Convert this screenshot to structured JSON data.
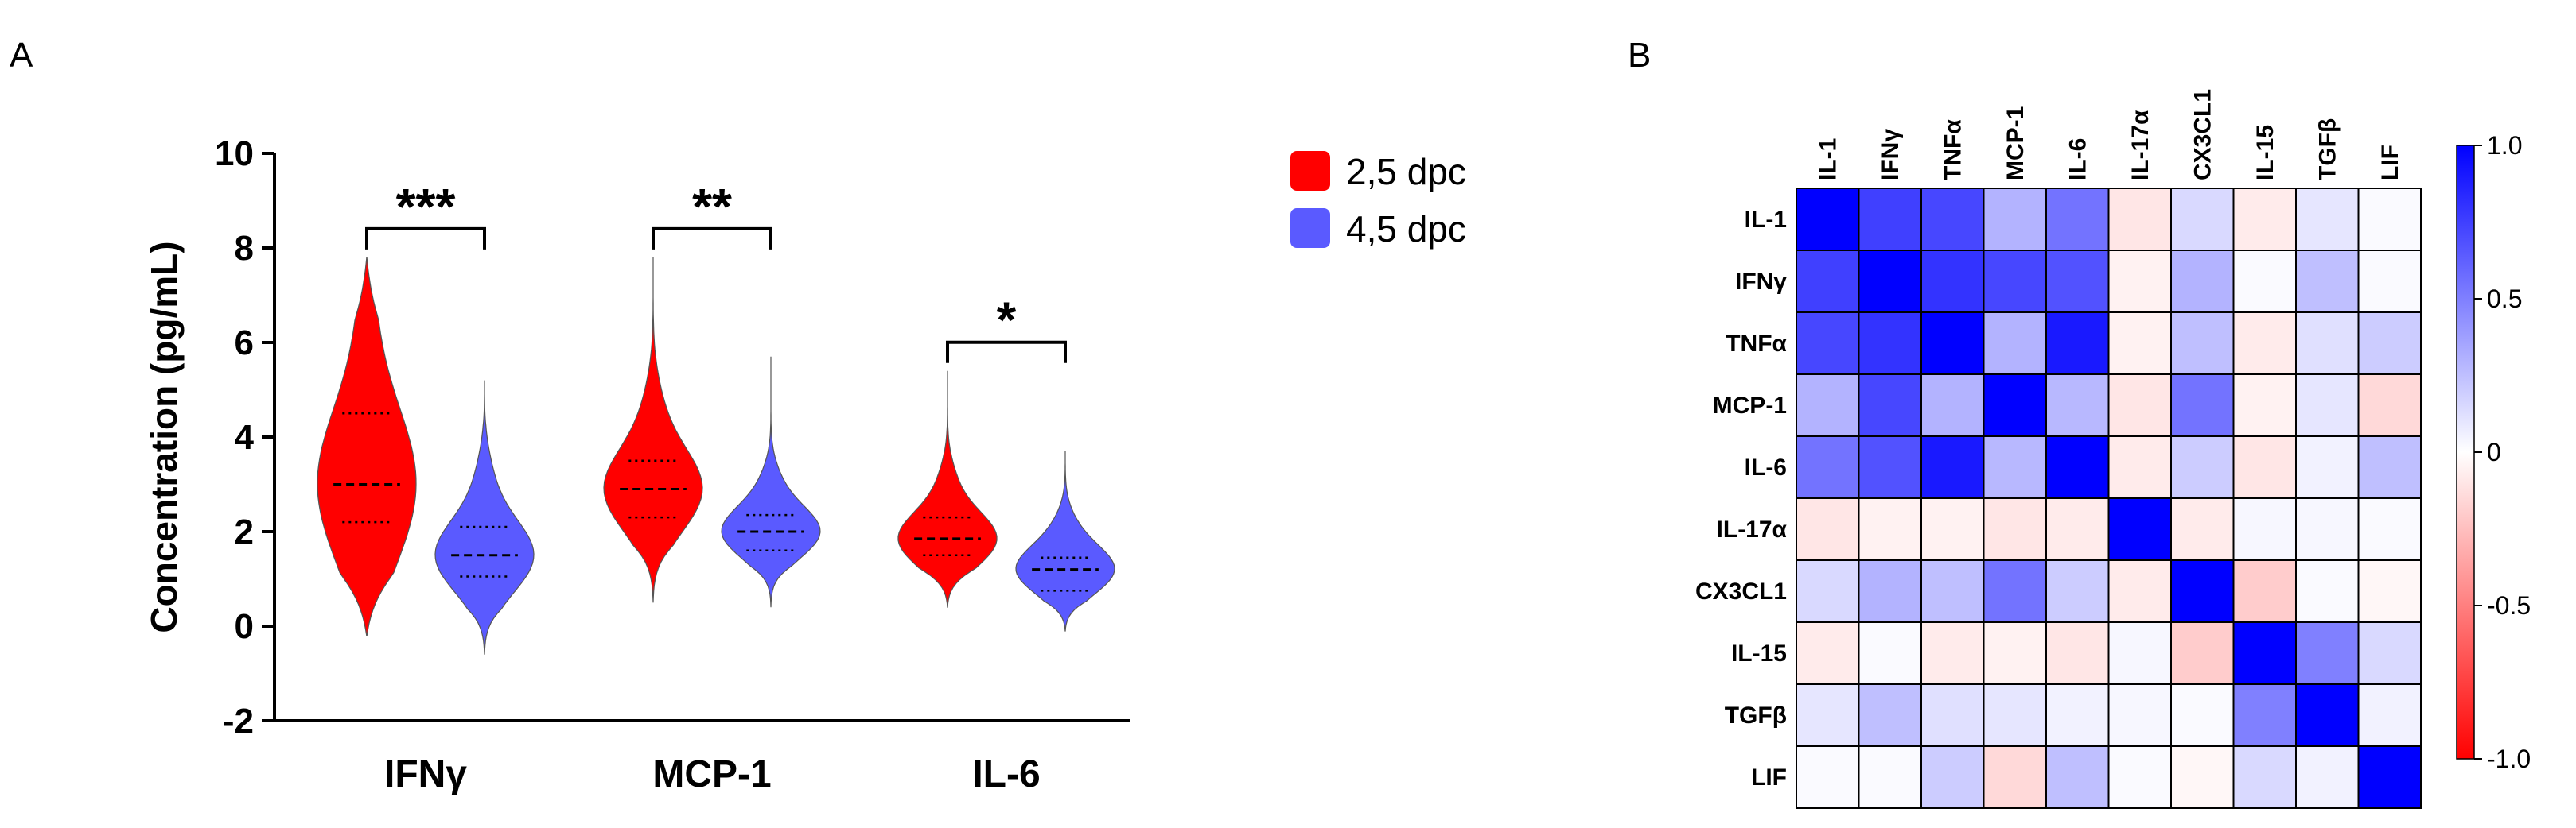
{
  "panels": {
    "a": "A",
    "b": "B"
  },
  "chart_data": [
    {
      "type": "violin",
      "ylabel": "Concentration (pg/mL)",
      "ylim": [
        -2,
        10
      ],
      "yticks": [
        "-2",
        "0",
        "2",
        "4",
        "6",
        "8",
        "10"
      ],
      "categories": [
        "IFNγ",
        "MCP-1",
        "IL-6"
      ],
      "series": [
        {
          "name": "2,5 dpc",
          "color": "#ff0000",
          "median": [
            3.0,
            2.9,
            1.85
          ],
          "q1": [
            2.2,
            2.3,
            1.5
          ],
          "q3": [
            4.5,
            3.5,
            2.3
          ],
          "min": [
            -0.2,
            0.5,
            0.4
          ],
          "max": [
            7.8,
            7.8,
            5.4
          ]
        },
        {
          "name": "4,5 dpc",
          "color": "#5a5aff",
          "median": [
            1.5,
            2.0,
            1.2
          ],
          "q1": [
            1.05,
            1.6,
            0.75
          ],
          "q3": [
            2.1,
            2.35,
            1.45
          ],
          "min": [
            -0.6,
            0.4,
            -0.1
          ],
          "max": [
            5.2,
            5.7,
            3.7
          ]
        }
      ],
      "significance": [
        "***",
        "**",
        "*"
      ],
      "legend_position": "right"
    },
    {
      "type": "heatmap",
      "labels": [
        "IL-1",
        "IFNγ",
        "TNFα",
        "MCP-1",
        "IL-6",
        "IL-17α",
        "CX3CL1",
        "IL-15",
        "TGFβ",
        "LIF"
      ],
      "colorbar_ticks": [
        "1.0",
        "0.5",
        "0",
        "-0.5",
        "-1.0"
      ],
      "range": [
        -1,
        1
      ],
      "colors": {
        "positive": "#0000ff",
        "negative": "#ff0000",
        "neutral": "#ffffff"
      },
      "matrix": [
        [
          1.0,
          0.75,
          0.72,
          0.3,
          0.55,
          -0.1,
          0.15,
          -0.08,
          0.1,
          0.02
        ],
        [
          0.75,
          1.0,
          0.8,
          0.72,
          0.68,
          -0.05,
          0.3,
          0.02,
          0.25,
          0.02
        ],
        [
          0.72,
          0.8,
          1.0,
          0.3,
          0.9,
          -0.05,
          0.25,
          -0.08,
          0.12,
          0.2
        ],
        [
          0.3,
          0.72,
          0.3,
          1.0,
          0.28,
          -0.1,
          0.55,
          -0.05,
          0.1,
          -0.15
        ],
        [
          0.55,
          0.68,
          0.9,
          0.28,
          1.0,
          -0.08,
          0.2,
          -0.1,
          0.05,
          0.25
        ],
        [
          -0.1,
          -0.05,
          -0.05,
          -0.1,
          -0.08,
          1.0,
          -0.08,
          0.03,
          0.03,
          0.02
        ],
        [
          0.15,
          0.3,
          0.25,
          0.55,
          0.2,
          -0.08,
          1.0,
          -0.2,
          0.02,
          -0.03
        ],
        [
          -0.08,
          0.02,
          -0.08,
          -0.05,
          -0.1,
          0.03,
          -0.2,
          1.0,
          0.5,
          0.15
        ],
        [
          0.1,
          0.25,
          0.12,
          0.1,
          0.05,
          0.03,
          0.02,
          0.5,
          1.0,
          0.05
        ],
        [
          0.02,
          0.02,
          0.2,
          -0.15,
          0.25,
          0.02,
          -0.03,
          0.15,
          0.05,
          1.0
        ]
      ]
    }
  ]
}
